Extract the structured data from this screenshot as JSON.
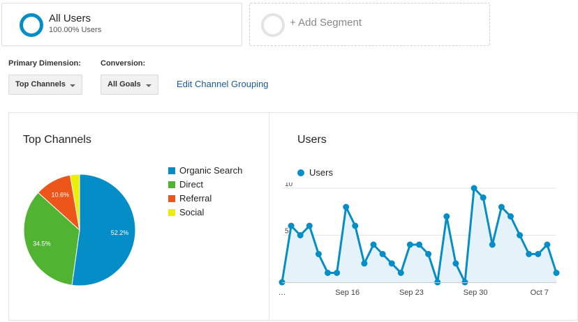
{
  "segments": {
    "all_users": {
      "title": "All Users",
      "subtitle": "100.00% Users"
    },
    "add_segment": {
      "label": "+ Add Segment"
    }
  },
  "controls": {
    "primary_dimension_label": "Primary Dimension:",
    "primary_dimension_value": "Top Channels",
    "conversion_label": "Conversion:",
    "conversion_value": "All Goals",
    "edit_link": "Edit Channel Grouping"
  },
  "colors": {
    "organic_search": "#058dc7",
    "direct": "#50b432",
    "referral": "#ed561b",
    "social": "#edef00",
    "line": "#058dc7",
    "area": "#e6f2f9"
  },
  "chart_data": [
    {
      "type": "pie",
      "title": "Top Channels",
      "legend_position": "right",
      "categories": [
        "Organic Search",
        "Direct",
        "Referral",
        "Social"
      ],
      "values": [
        52.2,
        34.5,
        10.6,
        2.7
      ],
      "data_labels": [
        "52.2%",
        "34.5%",
        "10.6%",
        ""
      ]
    },
    {
      "type": "line",
      "title": "Users",
      "legend_position": "top-left",
      "series": [
        {
          "name": "Users",
          "values": [
            0,
            6,
            5,
            6,
            3,
            1,
            1,
            8,
            6,
            2,
            4,
            3,
            2,
            1,
            4,
            4,
            3,
            0,
            7,
            2,
            0,
            10,
            9,
            4,
            8,
            7,
            5,
            3,
            3,
            4,
            1
          ]
        }
      ],
      "x_tick_labels": [
        "…",
        "Sep 16",
        "Sep 23",
        "Sep 30",
        "Oct 7"
      ],
      "x_tick_indices": [
        0,
        7,
        14,
        21,
        28
      ],
      "y_ticks": [
        5,
        10
      ],
      "ylim": [
        0,
        10
      ],
      "grid": true
    }
  ]
}
